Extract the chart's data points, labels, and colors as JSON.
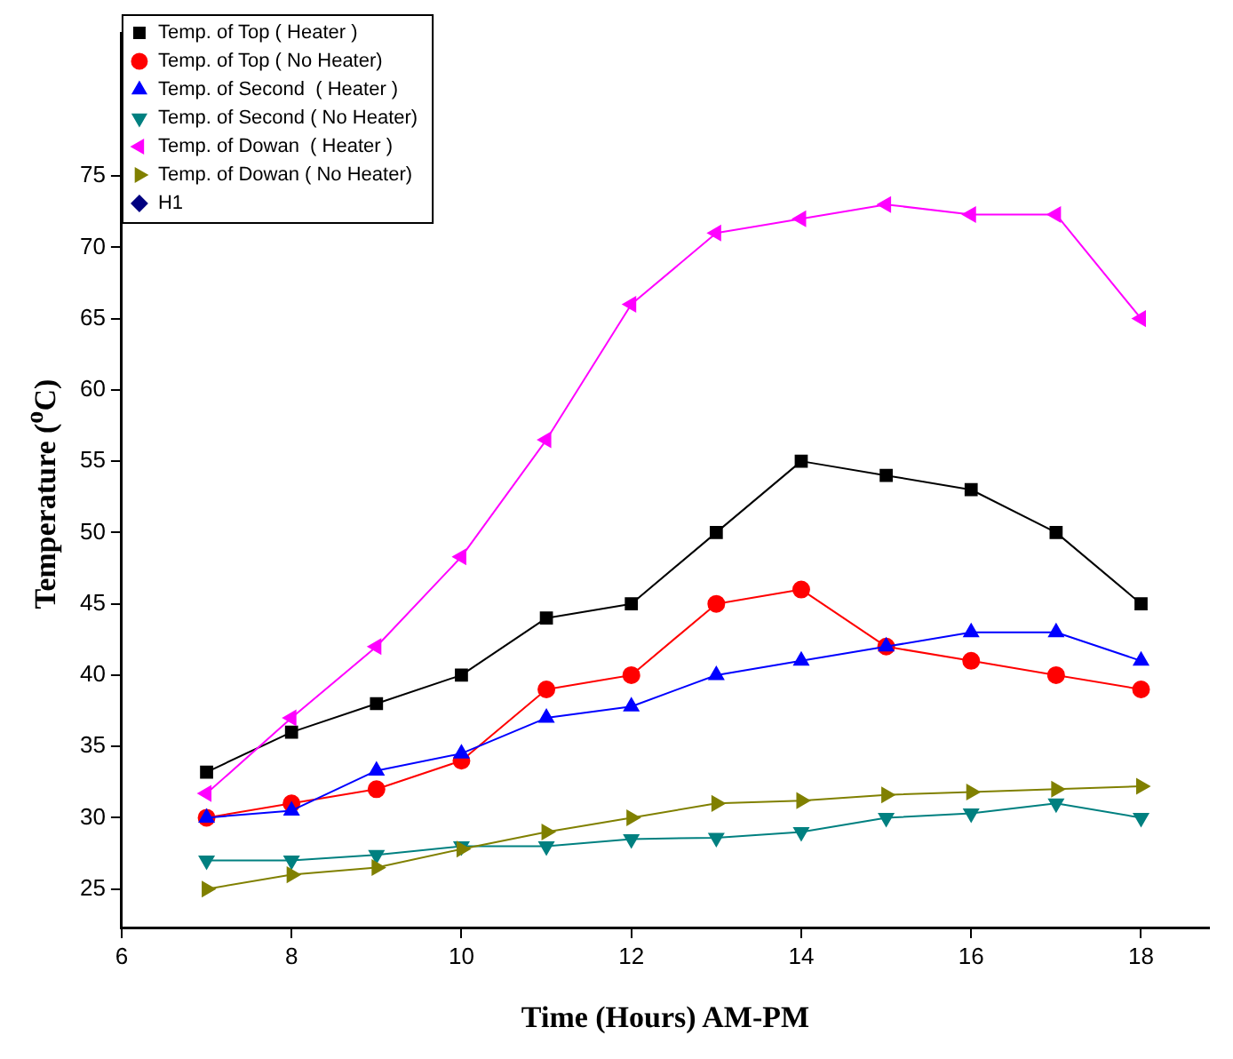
{
  "chart_data": {
    "type": "line",
    "xlabel": "Time (Hours) AM-PM",
    "ylabel": "Temperature ($^{o}$C)",
    "x": [
      7,
      8,
      9,
      10,
      11,
      12,
      13,
      14,
      15,
      16,
      17,
      18
    ],
    "xlim": [
      6,
      18.8
    ],
    "xticks": [
      6,
      8,
      10,
      12,
      14,
      16,
      18
    ],
    "ylim": [
      22.3,
      85
    ],
    "yticks": [
      25,
      30,
      35,
      40,
      45,
      50,
      55,
      60,
      65,
      70,
      75
    ],
    "grid": false,
    "legend": "top left",
    "line_style": "solid",
    "series": [
      {
        "name": "Temp. of Top ( Heater )",
        "color": "#000000",
        "marker": "square",
        "values": [
          33.2,
          36,
          38,
          40,
          44,
          45,
          50,
          55,
          54,
          53,
          50,
          45
        ]
      },
      {
        "name": "Temp. of Top ( No Heater)",
        "color": "#ff0000",
        "marker": "circle",
        "values": [
          30,
          31,
          32,
          34,
          39,
          40,
          45,
          46,
          42,
          41,
          40,
          39
        ]
      },
      {
        "name": "Temp. of Second  ( Heater )",
        "color": "#0000ff",
        "marker": "triangle",
        "values": [
          30,
          30.5,
          33.3,
          34.5,
          37,
          37.8,
          40,
          41,
          42,
          43,
          43,
          41
        ]
      },
      {
        "name": "Temp. of Second ( No Heater)",
        "color": "#008080",
        "marker": "triangle",
        "values": [
          27,
          27,
          27.4,
          28,
          28,
          28.5,
          28.6,
          29,
          30,
          30.3,
          31,
          30
        ]
      },
      {
        "name": "Temp. of Dowan  ( Heater )",
        "color": "#ff00ff",
        "marker": "triangle",
        "values": [
          31.7,
          37,
          42,
          48.3,
          56.5,
          66,
          71,
          72,
          73,
          72.3,
          72.3,
          65
        ]
      },
      {
        "name": "Temp. of Dowan ( No Heater)",
        "color": "#808000",
        "marker": "triangle",
        "values": [
          25,
          26,
          26.5,
          27.8,
          29,
          30,
          31,
          31.2,
          31.6,
          31.8,
          32,
          32.2
        ]
      },
      {
        "name": "H1",
        "color": "#000080",
        "marker": "diamond",
        "values": [
          null,
          null,
          null,
          null,
          null,
          null,
          null,
          null,
          null,
          null,
          null,
          null
        ]
      }
    ]
  }
}
